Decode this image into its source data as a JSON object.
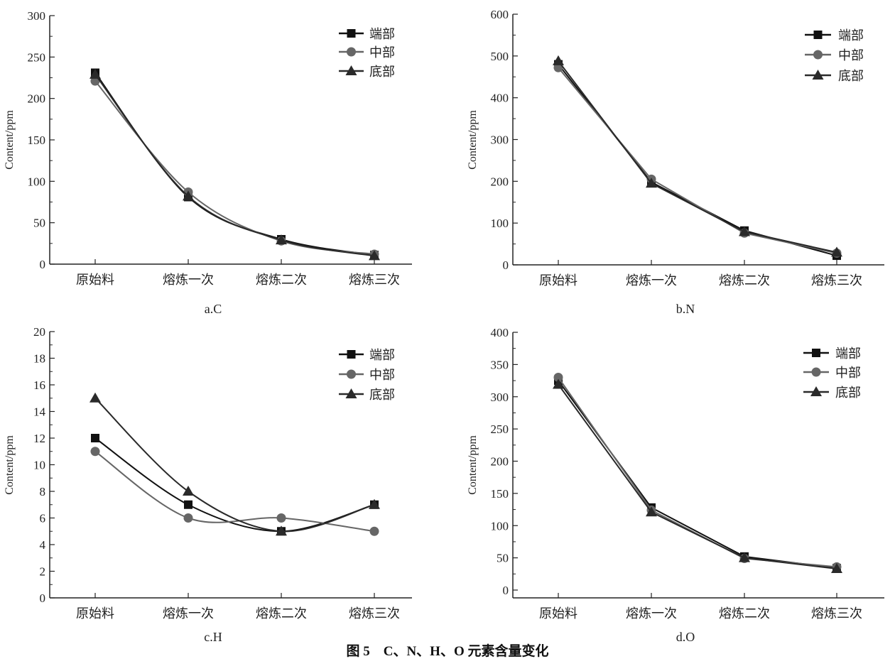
{
  "caption": "图 5　C、N、H、O 元素含量变化",
  "colors": {
    "端部": "#111111",
    "中部": "#666666",
    "底部": "#2a2a2a"
  },
  "chart_data": [
    {
      "type": "line",
      "subtitle": "a.C",
      "ylabel": "Content/ppm",
      "xlabel": "",
      "categories": [
        "原始料",
        "熔炼一次",
        "熔炼二次",
        "熔炼三次"
      ],
      "ylim": [
        0,
        300
      ],
      "yticks": [
        0,
        50,
        100,
        150,
        200,
        250,
        300
      ],
      "smooth": true,
      "legend": "top-right",
      "series": [
        {
          "name": "端部",
          "marker": "square",
          "values": [
            231,
            81,
            30,
            11
          ]
        },
        {
          "name": "中部",
          "marker": "circle",
          "values": [
            221,
            87,
            28,
            12
          ]
        },
        {
          "name": "底部",
          "marker": "triangle",
          "values": [
            229,
            82,
            29,
            10
          ]
        }
      ]
    },
    {
      "type": "line",
      "subtitle": "b.N",
      "ylabel": "Content/ppm",
      "xlabel": "",
      "categories": [
        "原始料",
        "熔炼一次",
        "熔炼二次",
        "熔炼三次"
      ],
      "ylim": [
        0,
        600
      ],
      "yticks": [
        0,
        100,
        200,
        300,
        400,
        500,
        600
      ],
      "smooth": false,
      "legend": "top-right",
      "series": [
        {
          "name": "端部",
          "marker": "square",
          "values": [
            480,
            198,
            82,
            22
          ]
        },
        {
          "name": "中部",
          "marker": "circle",
          "values": [
            472,
            205,
            76,
            28
          ]
        },
        {
          "name": "底部",
          "marker": "triangle",
          "values": [
            488,
            195,
            79,
            30
          ]
        }
      ]
    },
    {
      "type": "line",
      "subtitle": "c.H",
      "ylabel": "Content/ppm",
      "xlabel": "",
      "categories": [
        "原始料",
        "熔炼一次",
        "熔炼二次",
        "熔炼三次"
      ],
      "ylim": [
        0,
        20
      ],
      "yticks": [
        0,
        2,
        4,
        6,
        8,
        10,
        12,
        14,
        16,
        18,
        20
      ],
      "smooth": true,
      "legend": "top-right",
      "series": [
        {
          "name": "端部",
          "marker": "square",
          "values": [
            12,
            7,
            5,
            7
          ]
        },
        {
          "name": "中部",
          "marker": "circle",
          "values": [
            11,
            6,
            6,
            5
          ]
        },
        {
          "name": "底部",
          "marker": "triangle",
          "values": [
            15,
            8,
            5,
            7
          ]
        }
      ]
    },
    {
      "type": "line",
      "subtitle": "d.O",
      "ylabel": "Content/ppm",
      "xlabel": "",
      "categories": [
        "原始料",
        "熔炼一次",
        "熔炼二次",
        "熔炼三次"
      ],
      "ylim": [
        0,
        400
      ],
      "yticks": [
        0,
        50,
        100,
        150,
        200,
        250,
        300,
        350,
        400
      ],
      "smooth": false,
      "legend": "top-right",
      "series": [
        {
          "name": "端部",
          "marker": "square",
          "values": [
            325,
            128,
            52,
            34
          ]
        },
        {
          "name": "中部",
          "marker": "circle",
          "values": [
            330,
            124,
            49,
            36
          ]
        },
        {
          "name": "底部",
          "marker": "triangle",
          "values": [
            319,
            121,
            50,
            33
          ]
        }
      ]
    }
  ]
}
